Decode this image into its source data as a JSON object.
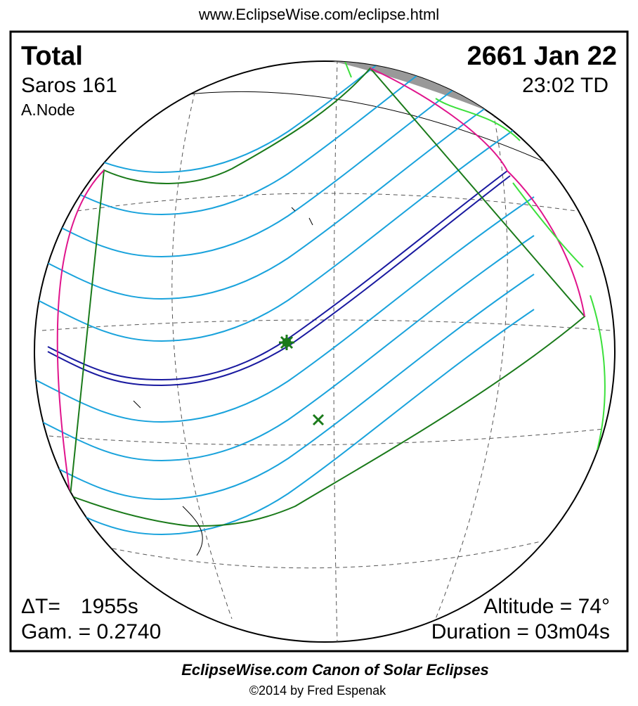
{
  "header": {
    "url": "www.EclipseWise.com/eclipse.html"
  },
  "map": {
    "eclipse_type": "Total",
    "saros": "Saros 161",
    "node": "A.Node",
    "date": "2661 Jan 22",
    "time": "23:02 TD",
    "delta_t_label": "ΔT=",
    "delta_t_value": "1955s",
    "gamma": "Gam. = 0.2740",
    "altitude": "Altitude = 74°",
    "duration": "Duration = 03m04s"
  },
  "footer": {
    "title": "EclipseWise.com Canon of Solar Eclipses",
    "credit": "©2014 by Fred Espenak"
  }
}
